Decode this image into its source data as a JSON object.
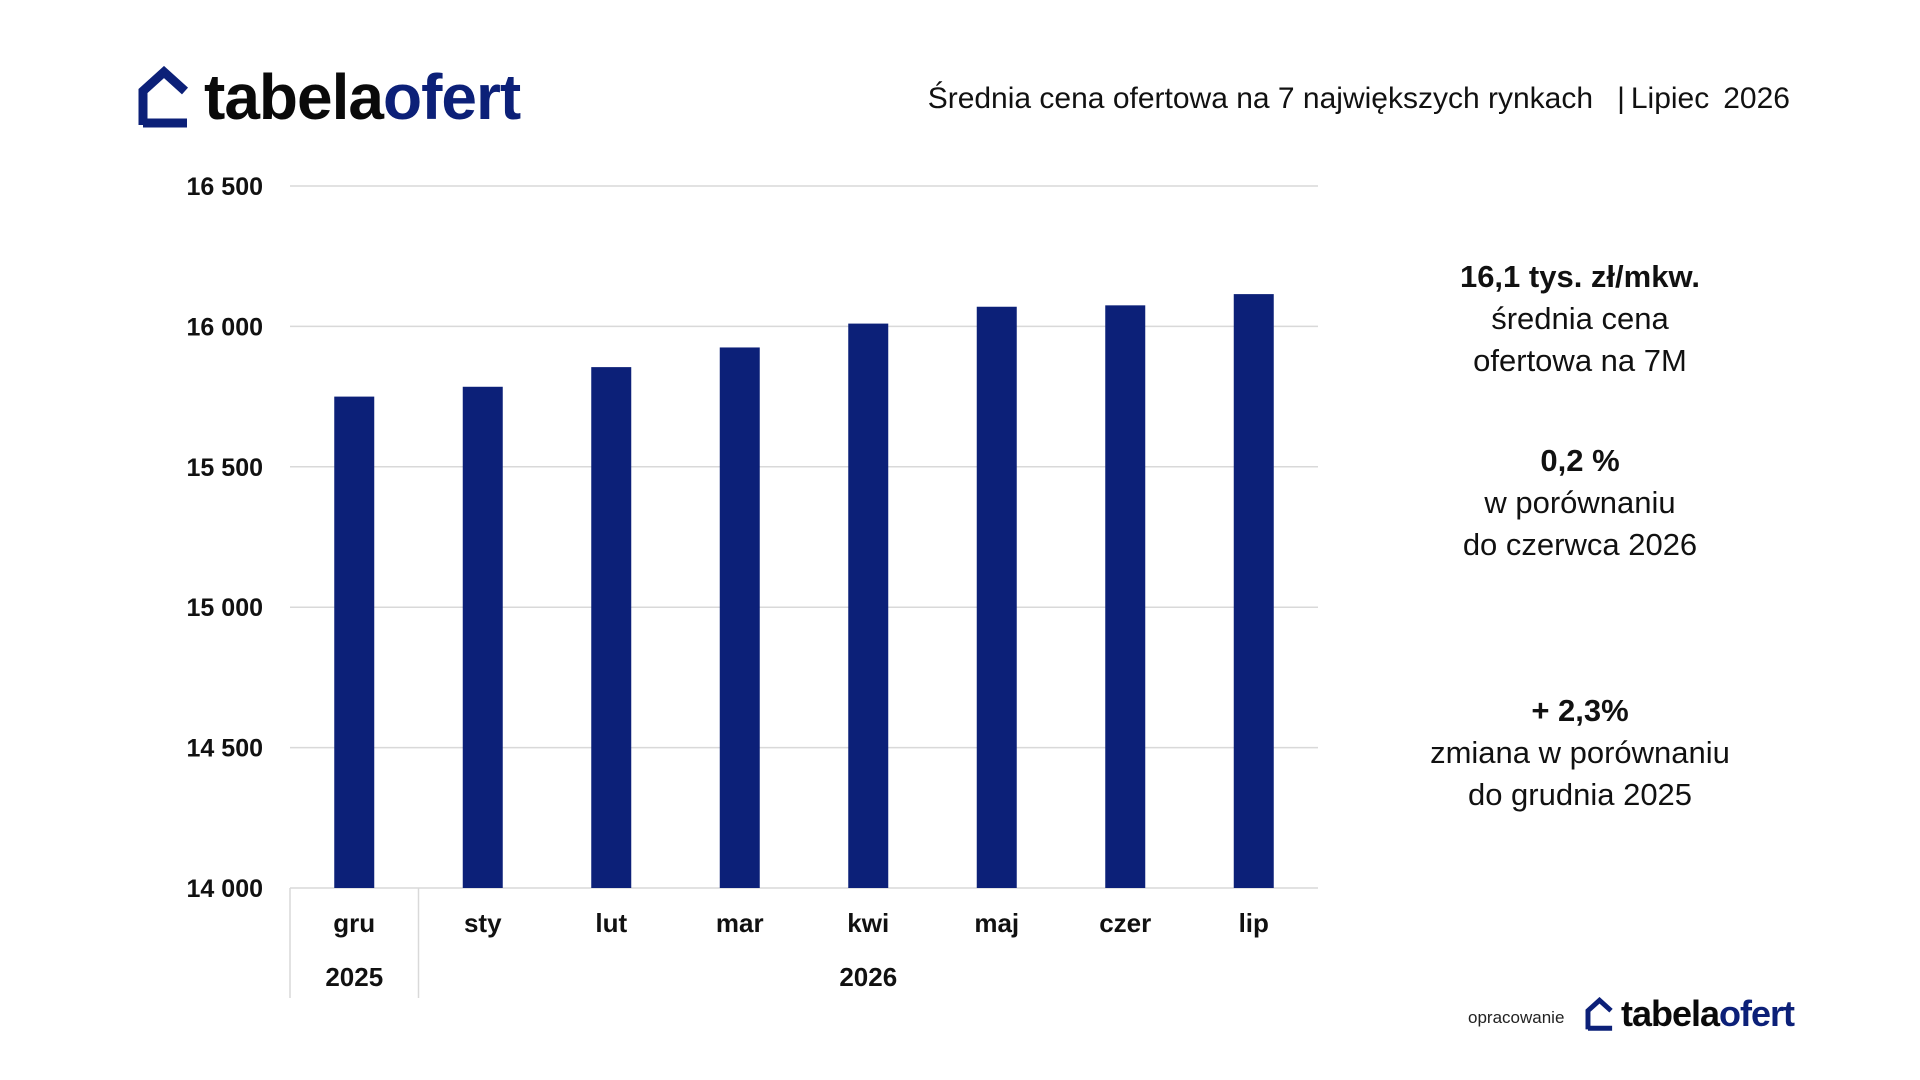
{
  "brand": {
    "name_part1": "tabela",
    "name_part2": "ofert",
    "footer_prefix": "opracowanie"
  },
  "header": {
    "title": "Średnia cena ofertowa na 7 największych rynkach",
    "separator": "|",
    "month": "Lipiec",
    "year": "2026"
  },
  "stats": {
    "price_value": "16,1 tys. zł/mkw.",
    "price_line1": "średnia cena",
    "price_line2": "ofertowa na 7M",
    "mom_value": "0,2 %",
    "mom_line1": "w porównaniu",
    "mom_line2": "do czerwca 2026",
    "ytd_value": "+ 2,3%",
    "ytd_line1": "zmiana w porównaniu",
    "ytd_line2": "do grudnia 2025"
  },
  "colors": {
    "bar": "#0c2078",
    "brand_blue": "#0c2078",
    "grid": "#d9d9d9"
  },
  "chart_data": {
    "type": "bar",
    "categories": [
      "gru",
      "sty",
      "lut",
      "mar",
      "kwi",
      "maj",
      "czer",
      "lip"
    ],
    "year_groups": [
      {
        "label": "2025",
        "count": 1
      },
      {
        "label": "2026",
        "count": 7
      }
    ],
    "values": [
      15750,
      15785,
      15855,
      15925,
      16010,
      16070,
      16075,
      16115
    ],
    "ylim": [
      14000,
      16500
    ],
    "yticks": [
      14000,
      14500,
      15000,
      15500,
      16000,
      16500
    ],
    "ytick_labels": [
      "14 000",
      "14 500",
      "15 000",
      "15 500",
      "16 000",
      "16 500"
    ],
    "grid": true,
    "legend": "none",
    "title": "",
    "xlabel": "",
    "ylabel": ""
  }
}
